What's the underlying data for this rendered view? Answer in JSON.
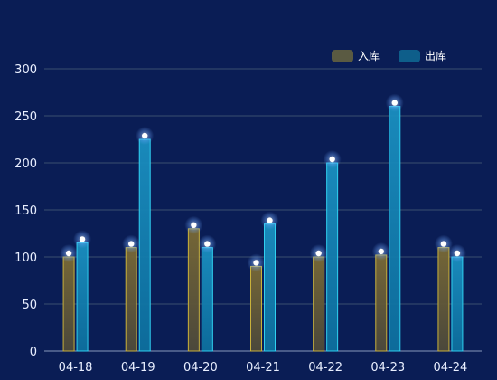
{
  "chart_data": {
    "type": "bar",
    "categories": [
      "04-18",
      "04-19",
      "04-20",
      "04-21",
      "04-22",
      "04-23",
      "04-24"
    ],
    "series": [
      {
        "name": "入库",
        "values": [
          100,
          110,
          130,
          90,
          100,
          102,
          110
        ],
        "color": "#c9b13a",
        "legend_color": "#5a5a42"
      },
      {
        "name": "出库",
        "values": [
          115,
          225,
          110,
          135,
          200,
          260,
          100
        ],
        "color": "#2fd0f0",
        "legend_color": "#0e5e8a"
      }
    ],
    "yticks": [
      "0",
      "50",
      "100",
      "150",
      "200",
      "250",
      "300"
    ],
    "ylim": [
      0,
      300
    ],
    "grid": true,
    "legend_position": "top-right",
    "marker_color": "#ffffff",
    "grid_color": "#3a4e6e",
    "background": "#0a1d55"
  }
}
